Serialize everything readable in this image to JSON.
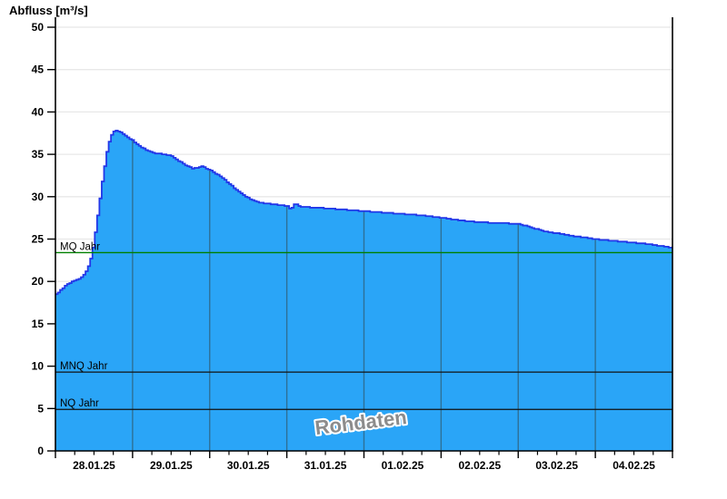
{
  "title": "Abfluss [m³/s]",
  "watermark": "Rohdaten",
  "colors": {
    "area_fill": "#2aa5f7",
    "series_line": "#2236e8",
    "h_gridline": "#e8e8e8",
    "v_gridline_in_fill": "#2e7096",
    "axis": "#000000",
    "mq_line": "#008000",
    "mnq_nq_line": "#111111",
    "watermark_text": "#8c8c8c"
  },
  "chart_data": {
    "type": "area",
    "title": "Abfluss [m³/s]",
    "ylabel": "Abfluss [m³/s]",
    "xlabel": "",
    "ylim": [
      0,
      50
    ],
    "y_ticks": [
      0,
      5,
      10,
      15,
      20,
      25,
      30,
      35,
      40,
      45,
      50
    ],
    "x_tick_labels": [
      "28.01.25",
      "29.01.25",
      "30.01.25",
      "31.01.25",
      "01.02.25",
      "02.02.25",
      "03.02.25",
      "04.02.25"
    ],
    "x_range_days": 8,
    "x_minor_ticks_per_day": 4,
    "grid": true,
    "legend": "none",
    "annotations": [
      "Rohdaten"
    ],
    "reference_lines": [
      {
        "label": "MQ Jahr",
        "value": 23.4,
        "color": "#008000"
      },
      {
        "label": "MNQ Jahr",
        "value": 9.3,
        "color": "#111111"
      },
      {
        "label": "NQ Jahr",
        "value": 4.9,
        "color": "#111111"
      }
    ],
    "series": [
      {
        "name": "Abfluss Rohdaten",
        "units": "m³/s",
        "x_unit": "days since 28.01.25 00:00",
        "points": [
          [
            0.0,
            18.5
          ],
          [
            0.04,
            18.8
          ],
          [
            0.08,
            19.1
          ],
          [
            0.12,
            19.5
          ],
          [
            0.17,
            19.8
          ],
          [
            0.22,
            20.0
          ],
          [
            0.28,
            20.2
          ],
          [
            0.33,
            20.5
          ],
          [
            0.38,
            21.0
          ],
          [
            0.42,
            21.8
          ],
          [
            0.46,
            23.0
          ],
          [
            0.49,
            24.5
          ],
          [
            0.52,
            26.5
          ],
          [
            0.55,
            28.5
          ],
          [
            0.58,
            30.5
          ],
          [
            0.61,
            32.5
          ],
          [
            0.64,
            34.2
          ],
          [
            0.67,
            35.8
          ],
          [
            0.7,
            36.9
          ],
          [
            0.73,
            37.5
          ],
          [
            0.76,
            37.8
          ],
          [
            0.8,
            37.8
          ],
          [
            0.84,
            37.6
          ],
          [
            0.88,
            37.3
          ],
          [
            0.93,
            37.0
          ],
          [
            1.0,
            36.6
          ],
          [
            1.08,
            36.0
          ],
          [
            1.15,
            35.6
          ],
          [
            1.25,
            35.2
          ],
          [
            1.4,
            35.0
          ],
          [
            1.5,
            34.8
          ],
          [
            1.58,
            34.3
          ],
          [
            1.68,
            33.7
          ],
          [
            1.78,
            33.3
          ],
          [
            1.86,
            33.5
          ],
          [
            1.9,
            33.6
          ],
          [
            1.95,
            33.3
          ],
          [
            2.0,
            33.1
          ],
          [
            2.1,
            32.6
          ],
          [
            2.2,
            31.9
          ],
          [
            2.35,
            30.7
          ],
          [
            2.5,
            29.8
          ],
          [
            2.65,
            29.3
          ],
          [
            2.8,
            29.1
          ],
          [
            3.0,
            28.9
          ],
          [
            3.04,
            28.5
          ],
          [
            3.1,
            29.2
          ],
          [
            3.16,
            28.8
          ],
          [
            3.4,
            28.7
          ],
          [
            3.7,
            28.5
          ],
          [
            4.0,
            28.3
          ],
          [
            4.3,
            28.1
          ],
          [
            4.6,
            27.9
          ],
          [
            4.85,
            27.7
          ],
          [
            5.0,
            27.5
          ],
          [
            5.25,
            27.2
          ],
          [
            5.45,
            27.0
          ],
          [
            5.75,
            26.9
          ],
          [
            6.0,
            26.8
          ],
          [
            6.15,
            26.4
          ],
          [
            6.35,
            25.9
          ],
          [
            6.55,
            25.6
          ],
          [
            6.75,
            25.3
          ],
          [
            7.0,
            25.0
          ],
          [
            7.2,
            24.8
          ],
          [
            7.45,
            24.6
          ],
          [
            7.7,
            24.4
          ],
          [
            7.9,
            24.1
          ],
          [
            8.0,
            24.0
          ]
        ]
      }
    ]
  }
}
